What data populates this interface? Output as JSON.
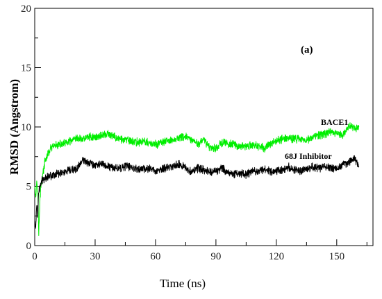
{
  "chart_data": {
    "type": "line",
    "title": "",
    "panel_label": "(a)",
    "xlabel": "Time (ns)",
    "ylabel": "RMSD (Angstrom)",
    "xlim": [
      0,
      168
    ],
    "ylim": [
      0,
      20
    ],
    "x_ticks": [
      0,
      30,
      60,
      90,
      120,
      150
    ],
    "y_ticks": [
      0,
      5,
      10,
      15,
      20
    ],
    "grid": false,
    "series": [
      {
        "name": "BACE1",
        "color": "#00ee00",
        "x": [
          0,
          0.5,
          1,
          1.5,
          2,
          2.5,
          3,
          4,
          5,
          6,
          8,
          10,
          12,
          15,
          18,
          21,
          24,
          27,
          30,
          33,
          36,
          39,
          42,
          45,
          48,
          51,
          54,
          57,
          60,
          63,
          66,
          69,
          72,
          75,
          78,
          81,
          84,
          87,
          90,
          93,
          96,
          99,
          102,
          105,
          108,
          111,
          114,
          117,
          120,
          123,
          126,
          129,
          132,
          135,
          138,
          141,
          144,
          147,
          150,
          153,
          156,
          159,
          161
        ],
        "values": [
          5.2,
          4.0,
          5.5,
          4.8,
          1.0,
          3.5,
          5.0,
          6.0,
          7.0,
          7.5,
          8.2,
          8.4,
          8.5,
          8.6,
          8.8,
          9.0,
          9.0,
          9.2,
          9.1,
          9.3,
          9.4,
          9.2,
          9.0,
          8.9,
          8.8,
          8.7,
          8.8,
          8.6,
          8.5,
          8.7,
          8.8,
          8.9,
          9.1,
          9.2,
          8.8,
          8.6,
          8.9,
          8.3,
          8.2,
          8.7,
          8.6,
          8.5,
          8.4,
          8.3,
          8.5,
          8.4,
          8.2,
          8.6,
          8.8,
          9.0,
          9.1,
          9.0,
          9.0,
          8.9,
          9.1,
          9.3,
          9.4,
          9.6,
          9.5,
          9.3,
          10.1,
          9.9,
          10.0
        ]
      },
      {
        "name": "68J Inhibitor",
        "color": "#000000",
        "x": [
          0,
          0.5,
          1,
          1.5,
          2,
          3,
          4,
          5,
          6,
          8,
          10,
          12,
          15,
          18,
          21,
          24,
          27,
          30,
          33,
          36,
          39,
          42,
          45,
          48,
          51,
          54,
          57,
          60,
          63,
          66,
          69,
          72,
          75,
          78,
          81,
          84,
          87,
          90,
          93,
          96,
          99,
          102,
          105,
          108,
          111,
          114,
          117,
          120,
          123,
          126,
          129,
          132,
          135,
          138,
          141,
          144,
          147,
          150,
          153,
          156,
          159,
          161
        ],
        "values": [
          2.0,
          1.5,
          3.5,
          2.5,
          4.5,
          5.2,
          5.6,
          5.7,
          5.8,
          5.9,
          6.0,
          6.1,
          6.2,
          6.3,
          6.5,
          7.2,
          7.0,
          6.8,
          6.9,
          6.7,
          6.6,
          6.5,
          6.7,
          6.6,
          6.5,
          6.4,
          6.5,
          6.3,
          6.4,
          6.6,
          6.7,
          6.9,
          6.5,
          6.3,
          6.5,
          6.4,
          6.2,
          6.3,
          6.5,
          6.2,
          6.0,
          6.1,
          6.0,
          6.2,
          6.3,
          6.5,
          6.2,
          6.3,
          6.4,
          6.6,
          6.4,
          6.3,
          6.5,
          6.6,
          6.5,
          6.7,
          6.6,
          6.5,
          6.8,
          7.0,
          7.3,
          6.7
        ]
      }
    ]
  }
}
